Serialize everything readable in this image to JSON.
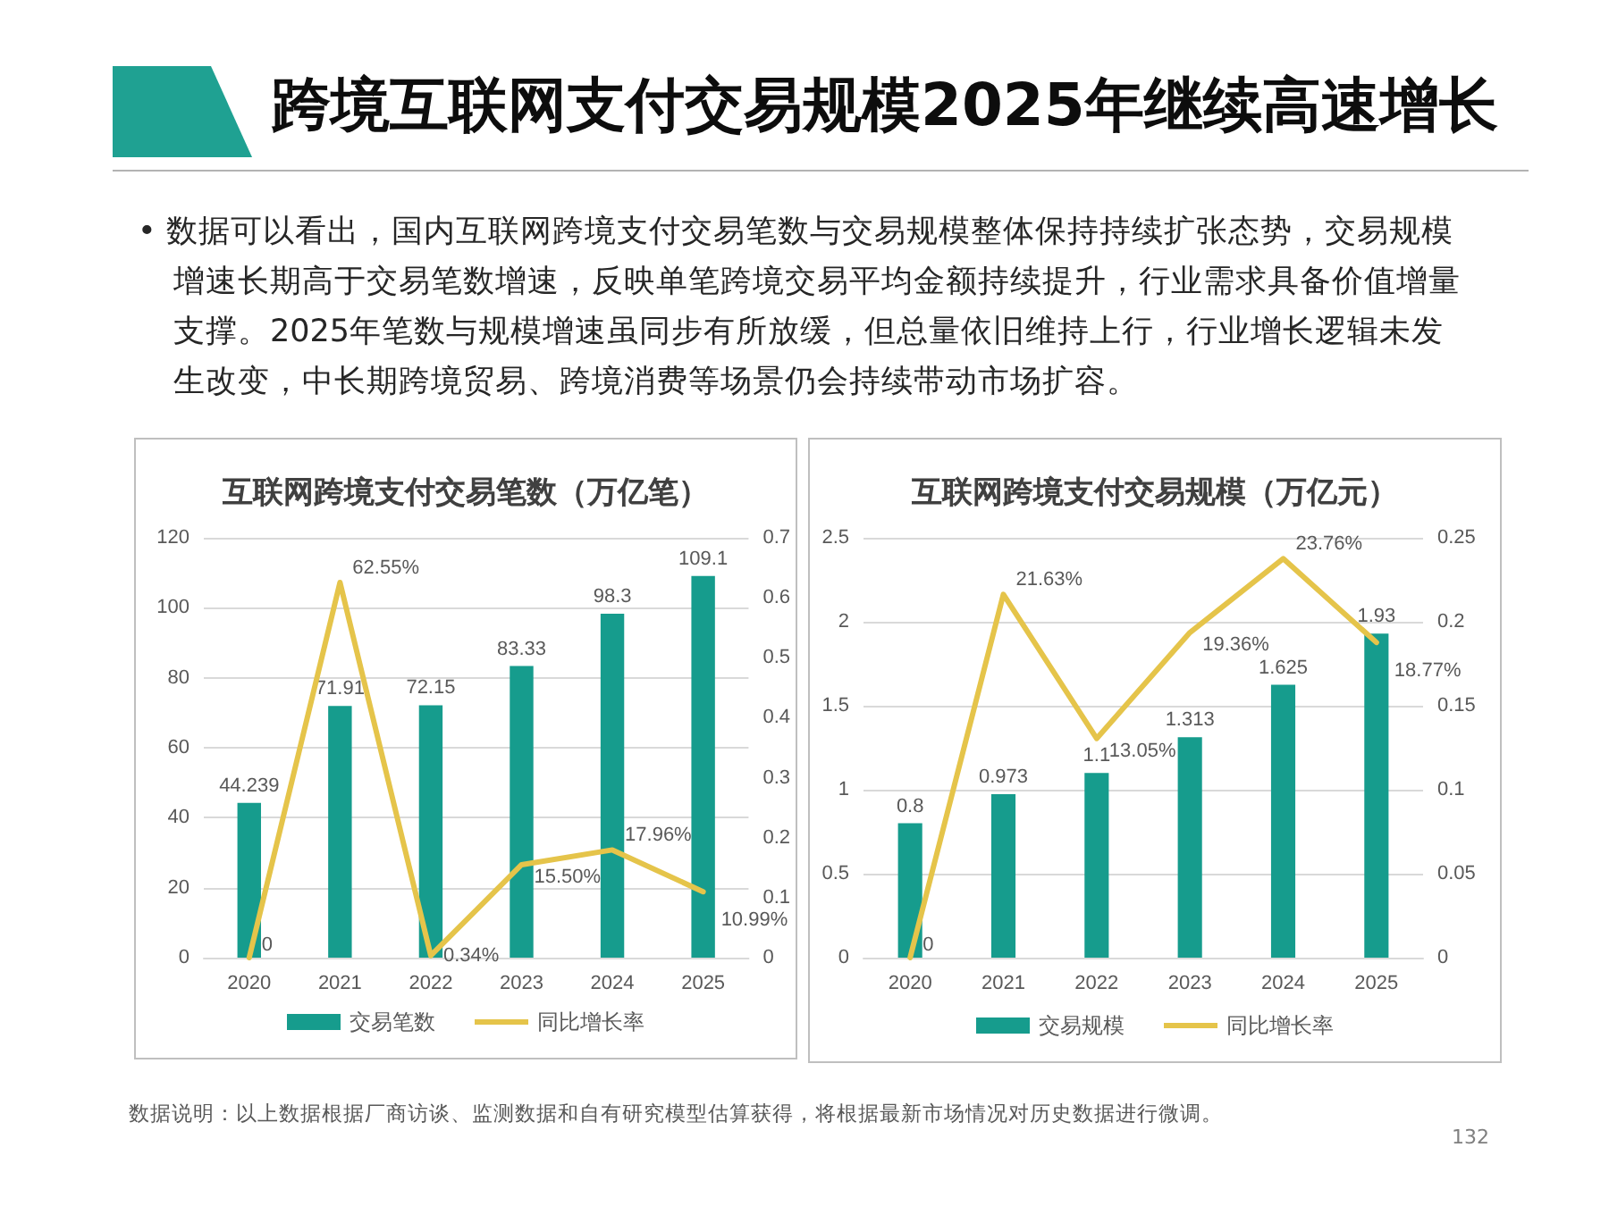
{
  "chart_data": [
    {
      "type": "other",
      "title": "跨境互联网支付交易规模2025年继续高速增长",
      "annotations": [
        "• 数据可以看出，国内互联网跨境支付交易笔数与交易规模整体保持持续扩张态势，交易规模增速长期高于交易笔数增速，反映单笔跨境交易平均金额持续提升，行业需求具备价值增量支撑。2025年笔数与规模增速虽同步有所放缓，但总量依旧维持上行，行业增长逻辑未发生改变，中长期跨境贸易、跨境消费等场景仍会持续带动市场扩容。"
      ]
    },
    {
      "type": "bar",
      "title": "互联网跨境支付交易笔数（万亿笔）",
      "categories": [
        "2020",
        "2021",
        "2022",
        "2023",
        "2024",
        "2025"
      ],
      "series": [
        {
          "name": "交易笔数",
          "type": "bar",
          "color": "#169c8d",
          "values": [
            44.239,
            71.91,
            72.15,
            83.33,
            98.3,
            109.1
          ],
          "value_labels": [
            "44.239",
            "71.91",
            "72.15",
            "83.33",
            "98.3",
            "109.1"
          ]
        },
        {
          "name": "同比增长率",
          "type": "line",
          "axis": "y2",
          "color": "#e5c44a",
          "values": [
            0,
            0.6255,
            0.0034,
            0.155,
            0.1796,
            0.1099
          ],
          "value_labels": [
            "0",
            "62.55%",
            "0.34%",
            "15.50%",
            "17.96%",
            "10.99%"
          ]
        }
      ],
      "ylim": [
        0,
        120
      ],
      "yticks": [
        0,
        20,
        40,
        60,
        80,
        100,
        120
      ],
      "y2lim": [
        0,
        0.7
      ],
      "y2ticks": [
        0,
        0.1,
        0.2,
        0.3,
        0.4,
        0.5,
        0.6,
        0.7
      ],
      "grid": "y",
      "legend": "bottom",
      "marker": "none"
    },
    {
      "type": "bar",
      "title": "互联网跨境支付交易规模（万亿元）",
      "categories": [
        "2020",
        "2021",
        "2022",
        "2023",
        "2024",
        "2025"
      ],
      "series": [
        {
          "name": "交易规模",
          "type": "bar",
          "color": "#169c8d",
          "values": [
            0.8,
            0.973,
            1.1,
            1.313,
            1.625,
            1.93
          ],
          "value_labels": [
            "0.8",
            "0.973",
            "1.1",
            "1.313",
            "1.625",
            "1.93"
          ]
        },
        {
          "name": "同比增长率",
          "type": "line",
          "axis": "y2",
          "color": "#e5c44a",
          "values": [
            0,
            0.2163,
            0.1305,
            0.1936,
            0.2376,
            0.1877
          ],
          "value_labels": [
            "0",
            "21.63%",
            "13.05%",
            "19.36%",
            "23.76%",
            "18.77%"
          ]
        }
      ],
      "ylim": [
        0,
        2.5
      ],
      "yticks": [
        0,
        0.5,
        1,
        1.5,
        2,
        2.5
      ],
      "y2lim": [
        0,
        0.25
      ],
      "y2ticks": [
        0,
        0.05,
        0.1,
        0.15,
        0.2,
        0.25
      ],
      "grid": "y",
      "legend": "bottom",
      "marker": "none"
    },
    {
      "type": "other",
      "annotations": [
        "数据说明：以上数据根据厂商访谈、监测数据和自有研究模型估算获得，将根据最新市场情况对历史数据进行微调。",
        "132"
      ]
    }
  ]
}
